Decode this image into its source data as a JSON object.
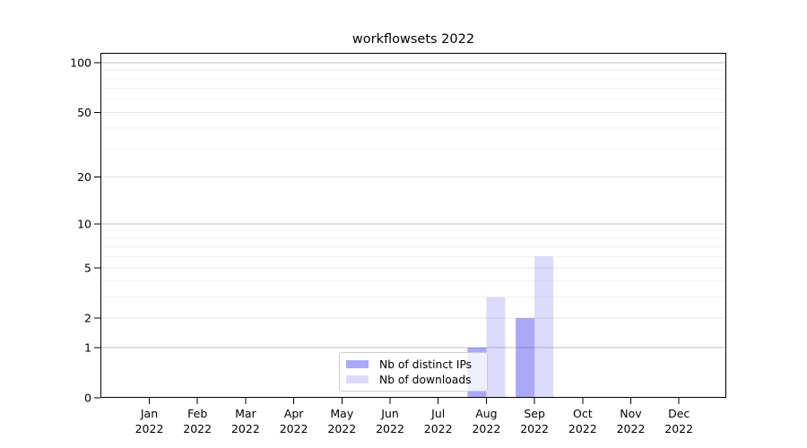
{
  "figure": {
    "background": "#ffffff"
  },
  "chart_data": {
    "type": "bar",
    "title": "workflowsets 2022",
    "categories": [
      "Jan",
      "Feb",
      "Mar",
      "Apr",
      "May",
      "Jun",
      "Jul",
      "Aug",
      "Sep",
      "Oct",
      "Nov",
      "Dec"
    ],
    "category_year": "2022",
    "series": [
      {
        "name": "Nb of distinct IPs",
        "values": [
          0,
          0,
          0,
          0,
          0,
          0,
          0,
          1,
          2,
          0,
          0,
          0
        ],
        "color": "#4540ee",
        "fill_opacity": 0.45
      },
      {
        "name": "Nb of downloads",
        "values": [
          0,
          0,
          0,
          0,
          0,
          0,
          0,
          3,
          6,
          0,
          0,
          0
        ],
        "color": "#4540ee",
        "fill_opacity": 0.19
      }
    ],
    "y_axis": {
      "scale": "log1p",
      "ticks": [
        0,
        1,
        2,
        5,
        10,
        20,
        50,
        100
      ]
    },
    "x_axis": {
      "tick_label_year": "2022"
    },
    "grid": {
      "on": true,
      "major_values": [
        1,
        10,
        100
      ],
      "labeled_values": [
        2,
        5,
        20,
        50
      ],
      "minor_values": [
        3,
        4,
        6,
        7,
        8,
        9,
        30,
        40,
        60,
        70,
        80,
        90
      ],
      "major_color": "#c2c2c2",
      "labeled_color": "#e4e4e4",
      "minor_color": "#f0f0f0"
    },
    "legend": {
      "position": "lower center-right inside plot",
      "entries": [
        "Nb of distinct IPs",
        "Nb of downloads"
      ]
    },
    "colors": {
      "spine": "#000000",
      "tick_text": "#000000"
    }
  }
}
